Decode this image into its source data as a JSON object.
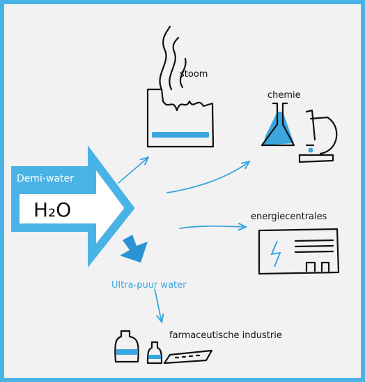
{
  "nodes": [
    {
      "label": "stoom"
    },
    {
      "label": "chemie"
    },
    {
      "label": "Demi-water"
    },
    {
      "label": "H₂O"
    },
    {
      "label": "energiecentrales"
    },
    {
      "label": "Ultra-puur water"
    },
    {
      "label": "farmaceutische industrie"
    }
  ]
}
